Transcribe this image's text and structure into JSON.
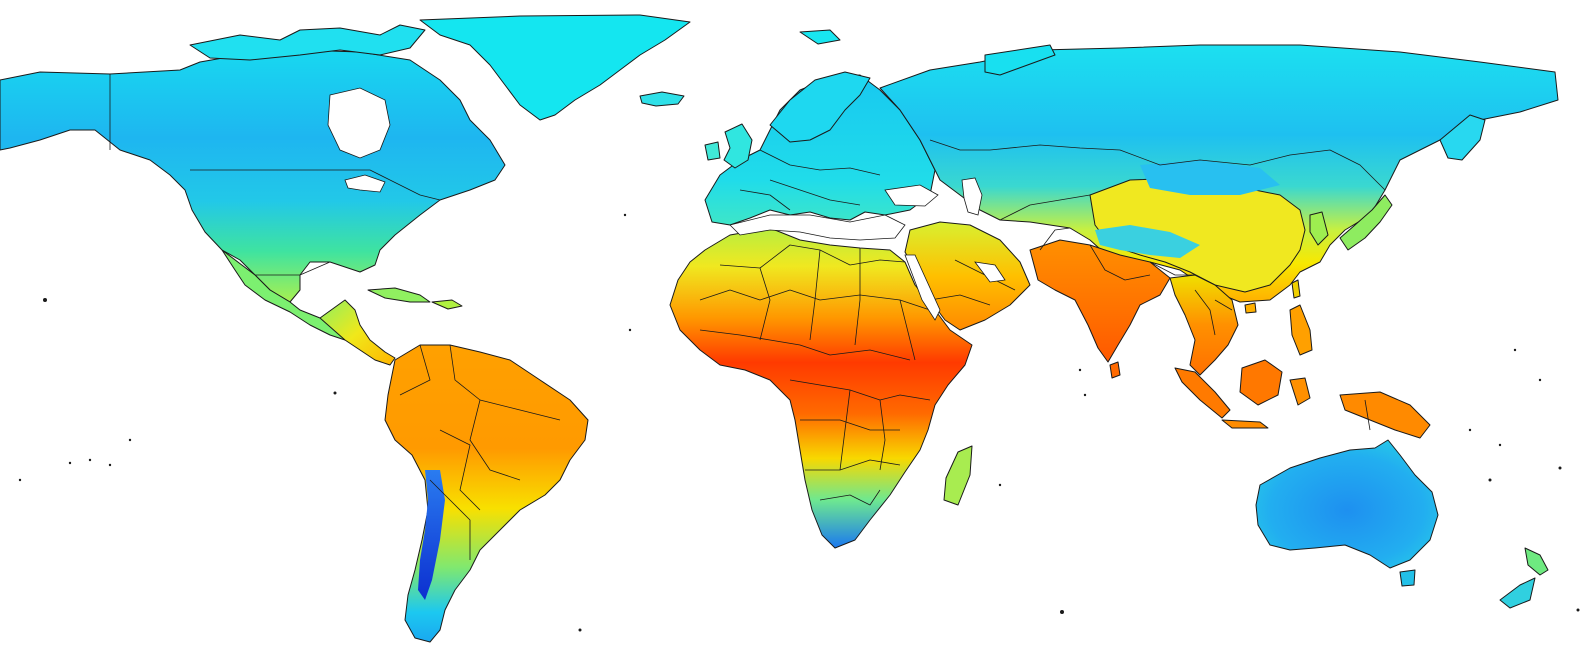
{
  "map": {
    "palette": {
      "coldest": "#0c2fd0",
      "cold": "#1e90ff",
      "cool": "#00e5ff",
      "mild": "#7fff7f",
      "warm": "#ffff00",
      "hot": "#ff8c00",
      "hottest": "#ff0000",
      "border": "#1a1a1a",
      "ocean": "#ffffff"
    },
    "regions": [
      {
        "name": "north-america",
        "color_key": "cool"
      },
      {
        "name": "greenland",
        "color_key": "cool"
      },
      {
        "name": "central-america",
        "color_key": "warm"
      },
      {
        "name": "south-america",
        "color_key": "hot"
      },
      {
        "name": "europe",
        "color_key": "cool"
      },
      {
        "name": "russia-north-asia",
        "color_key": "cool"
      },
      {
        "name": "middle-east",
        "color_key": "hot"
      },
      {
        "name": "africa",
        "color_key": "hottest"
      },
      {
        "name": "south-asia",
        "color_key": "hot"
      },
      {
        "name": "east-asia",
        "color_key": "warm"
      },
      {
        "name": "southeast-asia",
        "color_key": "hot"
      },
      {
        "name": "australia",
        "color_key": "cold"
      },
      {
        "name": "new-zealand",
        "color_key": "mild"
      },
      {
        "name": "madagascar",
        "color_key": "mild"
      },
      {
        "name": "japan",
        "color_key": "mild"
      }
    ]
  }
}
